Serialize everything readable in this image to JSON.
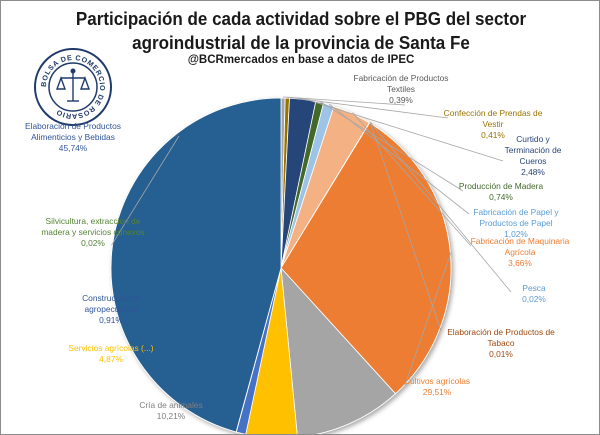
{
  "header": {
    "title_line1": "Participación de cada actividad sobre el PBG del sector",
    "title_line2": "agroindustrial de la provincia de Santa Fe",
    "subtitle": "@BCRmercados en base a datos de IPEC"
  },
  "logo": {
    "ring_text": "BOLSA DE COMERCIO DE ROSARIO",
    "color": "#1f3a6b"
  },
  "chart_data": {
    "type": "pie",
    "title": "Participación de cada actividad sobre el PBG del sector agroindustrial de la provincia de Santa Fe",
    "slices": [
      {
        "label": [
          "Fabricación de Productos",
          "Textiles"
        ],
        "value_label": "0,39%",
        "value": 0.39,
        "color": "#A5A5A5",
        "label_color": "#595959"
      },
      {
        "label": [
          "Confección de Prendas de",
          "Vestir"
        ],
        "value_label": "0,41%",
        "value": 0.41,
        "color": "#997300",
        "label_color": "#997300"
      },
      {
        "label": [
          "Curtido y",
          "Terminación de",
          "Cueros"
        ],
        "value_label": "2,48%",
        "value": 2.48,
        "color": "#264478",
        "label_color": "#264478"
      },
      {
        "label": [
          "Producción de Madera"
        ],
        "value_label": "0,74%",
        "value": 0.74,
        "color": "#43682B",
        "label_color": "#43682B"
      },
      {
        "label": [
          "Fabricación de Papel y",
          "Productos de Papel"
        ],
        "value_label": "1,02%",
        "value": 1.02,
        "color": "#9DC3E6",
        "label_color": "#5B9BD5"
      },
      {
        "label": [
          "Fabricación de Maquinaria",
          "Agrícola"
        ],
        "value_label": "3,66%",
        "value": 3.66,
        "color": "#F4B183",
        "label_color": "#ED7D31"
      },
      {
        "label": [
          "Pesca"
        ],
        "value_label": "0,02%",
        "value": 0.02,
        "color": "#5B9BD5",
        "label_color": "#5B9BD5"
      },
      {
        "label": [
          "Elaboración de Productos de",
          "Tabaco"
        ],
        "value_label": "0,01%",
        "value": 0.01,
        "color": "#9E480E",
        "label_color": "#9E480E"
      },
      {
        "label": [
          "Cultivos agrícolas"
        ],
        "value_label": "29,51%",
        "value": 29.51,
        "color": "#ED7D31",
        "label_color": "#ED7D31"
      },
      {
        "label": [
          "Cría de animales"
        ],
        "value_label": "10,21%",
        "value": 10.21,
        "color": "#A5A5A5",
        "label_color": "#7F7F7F"
      },
      {
        "label": [
          "Servicios agrícolas (...)"
        ],
        "value_label": "4,87%",
        "value": 4.87,
        "color": "#FFC000",
        "label_color": "#FFC000"
      },
      {
        "label": [
          "Construcciones",
          "agropecuarias"
        ],
        "value_label": "0,91%",
        "value": 0.91,
        "color": "#4472C4",
        "label_color": "#2F5597"
      },
      {
        "label": [
          "Silvicultura, extraccion de",
          "madera y servicios conexos"
        ],
        "value_label": "0,02%",
        "value": 0.02,
        "color": "#70AD47",
        "label_color": "#548235"
      },
      {
        "label": [
          "Elaboración de Productos",
          "Alimenticios y Bebidas"
        ],
        "value_label": "45,74%",
        "value": 45.74,
        "color": "#255E91",
        "label_color": "#2F5597"
      }
    ]
  }
}
